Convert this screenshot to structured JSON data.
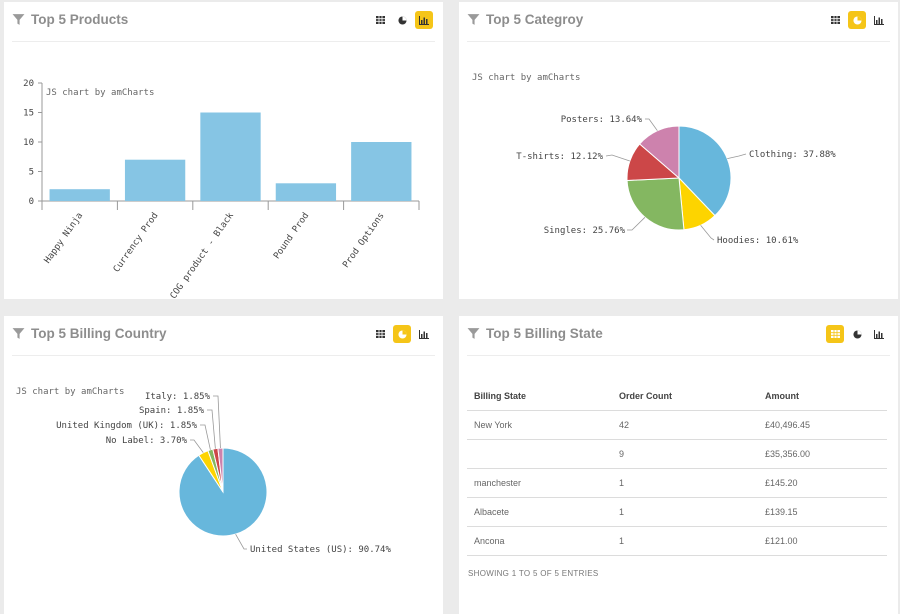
{
  "panels": {
    "products": {
      "title": "Top 5 Products"
    },
    "category": {
      "title": "Top 5 Categroy"
    },
    "country": {
      "title": "Top 5 Billing Country"
    },
    "state": {
      "title": "Top 5 Billing State"
    }
  },
  "icons": {
    "table": "table-icon",
    "pie": "pie-chart-icon",
    "bar": "bar-chart-icon",
    "filter": "filter-icon"
  },
  "colors": {
    "accent": "#f5c518",
    "bar": "#86c5e4"
  },
  "credit": "JS chart by amCharts",
  "chart_data": [
    {
      "type": "bar",
      "categories": [
        "Happy Ninja",
        "Currency Prod",
        "COG product - Black",
        "Pound Prod",
        "Prod Options"
      ],
      "values": [
        2,
        7,
        15,
        3,
        10
      ],
      "ylim": [
        0,
        20
      ],
      "yticks": [
        0,
        5,
        10,
        15,
        20
      ],
      "colors": [
        "#86c5e4"
      ]
    },
    {
      "type": "pie",
      "slices": [
        {
          "label": "Clothing",
          "value": 37.88,
          "color": "#67b7dc"
        },
        {
          "label": "Hoodies",
          "value": 10.61,
          "color": "#fdd400"
        },
        {
          "label": "Singles",
          "value": 25.76,
          "color": "#84b761"
        },
        {
          "label": "T-shirts",
          "value": 12.12,
          "color": "#cc4748"
        },
        {
          "label": "Posters",
          "value": 13.64,
          "color": "#cd82ad"
        }
      ]
    },
    {
      "type": "pie",
      "slices": [
        {
          "label": "United States (US)",
          "value": 90.74,
          "color": "#67b7dc"
        },
        {
          "label": "No Label",
          "value": 3.7,
          "color": "#fdd400"
        },
        {
          "label": "United Kingdom (UK)",
          "value": 1.85,
          "color": "#84b761"
        },
        {
          "label": "Spain",
          "value": 1.85,
          "color": "#cc4748"
        },
        {
          "label": "Italy",
          "value": 1.85,
          "color": "#cd82ad"
        }
      ]
    }
  ],
  "state_table": {
    "headers": [
      "Billing State",
      "Order Count",
      "Amount"
    ],
    "rows": [
      [
        "New York",
        "42",
        "£40,496.45"
      ],
      [
        "",
        "9",
        "£35,356.00"
      ],
      [
        "manchester",
        "1",
        "£145.20"
      ],
      [
        "Albacete",
        "1",
        "£139.15"
      ],
      [
        "Ancona",
        "1",
        "£121.00"
      ]
    ],
    "footer": "SHOWING 1 TO 5 OF 5 ENTRIES"
  }
}
